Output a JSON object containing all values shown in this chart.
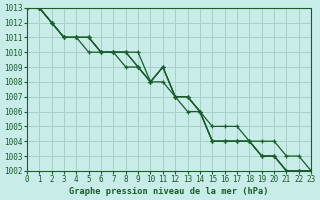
{
  "title": "Graphe pression niveau de la mer (hPa)",
  "bg": "#c8ece8",
  "grid_color": "#a8cfc8",
  "line_color": "#1a5c2a",
  "xlim": [
    0,
    23
  ],
  "ylim": [
    1002,
    1013
  ],
  "xticks": [
    0,
    1,
    2,
    3,
    4,
    5,
    6,
    7,
    8,
    9,
    10,
    11,
    12,
    13,
    14,
    15,
    16,
    17,
    18,
    19,
    20,
    21,
    22,
    23
  ],
  "yticks": [
    1002,
    1003,
    1004,
    1005,
    1006,
    1007,
    1008,
    1009,
    1010,
    1011,
    1012,
    1013
  ],
  "s1": [
    1013,
    1013,
    1012,
    1011,
    1011,
    1011,
    1010,
    1010,
    1010,
    1010,
    1008,
    1009,
    1007,
    1007,
    1006,
    1004,
    1004,
    1004,
    1004,
    1003,
    1003,
    1002,
    1002,
    1002
  ],
  "s2": [
    1013,
    1013,
    1012,
    1011,
    1011,
    1011,
    1010,
    1010,
    1010,
    1009,
    1008,
    1009,
    1007,
    1007,
    1006,
    1004,
    1004,
    1004,
    1004,
    1003,
    1003,
    1002,
    1002,
    1002
  ],
  "s3": [
    1013,
    1013,
    1012,
    1011,
    1011,
    1010,
    1010,
    1010,
    1009,
    1009,
    1008,
    1008,
    1007,
    1006,
    1006,
    1005,
    1005,
    1005,
    1004,
    1004,
    1004,
    1003,
    1003,
    1002
  ],
  "s4": [
    1013,
    1013,
    1012,
    1011,
    1011,
    1011,
    1010,
    1010,
    1010,
    1009,
    1008,
    1009,
    1007,
    1007,
    1006,
    1004,
    1004,
    1004,
    1004,
    1003,
    1003,
    1002,
    1002,
    1002
  ]
}
